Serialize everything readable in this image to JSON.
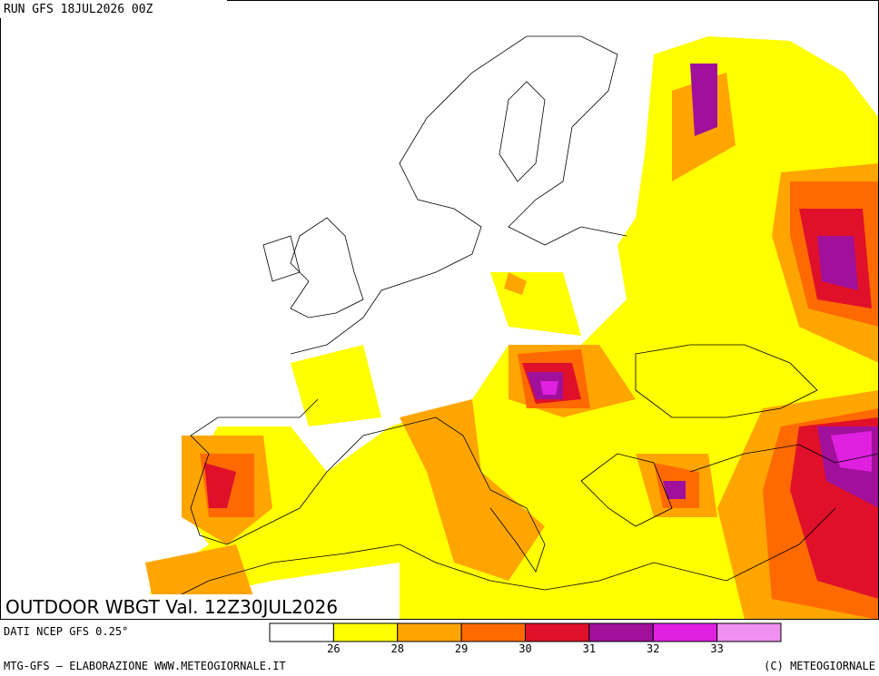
{
  "header": {
    "run": "RUN GFS 18JUL2026 00Z"
  },
  "map_title": "OUTDOOR WBGT Val. 12Z30JUL2026",
  "source": "DATI NCEP GFS 0.25°",
  "legend": {
    "colors": [
      "#ffffff",
      "#ffff00",
      "#ffa500",
      "#ff6a00",
      "#e0102a",
      "#a0109a",
      "#e020e0",
      "#f090f0"
    ],
    "ticks": [
      26,
      28,
      29,
      30,
      31,
      32,
      33
    ]
  },
  "footer": {
    "left": "MTG-GFS — ELABORAZIONE WWW.METEOGIORNALE.IT",
    "right": "(C) METEOGIORNALE"
  }
}
